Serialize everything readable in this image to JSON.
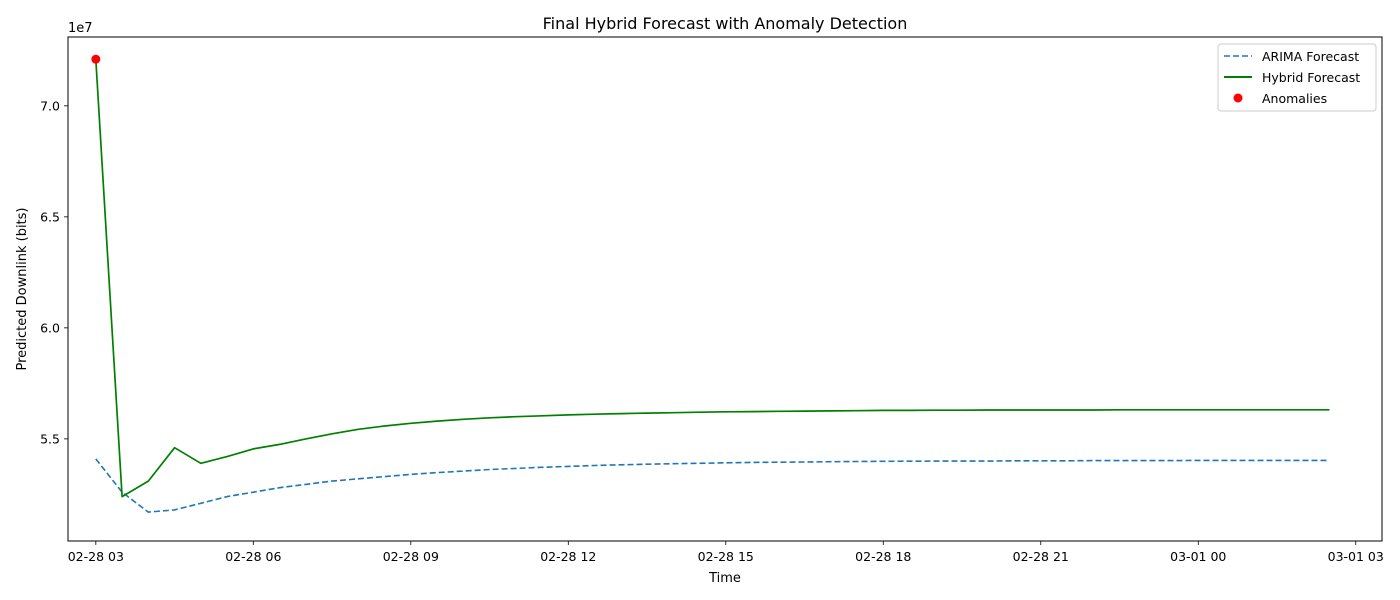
{
  "chart_data": {
    "type": "line",
    "title": "Final Hybrid Forecast with Anomaly Detection",
    "xlabel": "Time",
    "ylabel": "Predicted Downlink (bits)",
    "y_offset_text": "1e7",
    "y_multiplier": 10000000,
    "x_unit": "hours since 02-28 00:00",
    "xlim": [
      2.47,
      27.5
    ],
    "ylim": [
      5.04,
      7.31
    ],
    "x_ticks": [
      {
        "value": 3,
        "label": "02-28 03"
      },
      {
        "value": 6,
        "label": "02-28 06"
      },
      {
        "value": 9,
        "label": "02-28 09"
      },
      {
        "value": 12,
        "label": "02-28 12"
      },
      {
        "value": 15,
        "label": "02-28 15"
      },
      {
        "value": 18,
        "label": "02-28 18"
      },
      {
        "value": 21,
        "label": "02-28 21"
      },
      {
        "value": 24,
        "label": "03-01 00"
      },
      {
        "value": 27,
        "label": "03-01 03"
      }
    ],
    "y_ticks": [
      {
        "value": 5.5,
        "label": "5.5"
      },
      {
        "value": 6.0,
        "label": "6.0"
      },
      {
        "value": 6.5,
        "label": "6.5"
      },
      {
        "value": 7.0,
        "label": "7.0"
      }
    ],
    "x": [
      3.0,
      3.5,
      4.0,
      4.5,
      5.0,
      5.5,
      6.0,
      6.5,
      7.0,
      7.5,
      8.0,
      8.5,
      9.0,
      9.5,
      10.0,
      10.5,
      11.0,
      11.5,
      12.0,
      12.5,
      13.0,
      13.5,
      14.0,
      14.5,
      15.0,
      15.5,
      16.0,
      16.5,
      17.0,
      17.5,
      18.0,
      18.5,
      19.0,
      19.5,
      20.0,
      20.5,
      21.0,
      21.5,
      22.0,
      22.5,
      23.0,
      23.5,
      24.0,
      24.5,
      25.0,
      25.5,
      26.0,
      26.5
    ],
    "series": [
      {
        "name": "ARIMA Forecast",
        "style": "dashed",
        "color": "#1f77b4",
        "values": [
          5.41,
          5.26,
          5.17,
          5.18,
          5.21,
          5.24,
          5.26,
          5.28,
          5.295,
          5.31,
          5.32,
          5.33,
          5.34,
          5.348,
          5.355,
          5.362,
          5.367,
          5.372,
          5.376,
          5.38,
          5.383,
          5.386,
          5.388,
          5.39,
          5.392,
          5.394,
          5.395,
          5.396,
          5.397,
          5.398,
          5.399,
          5.3995,
          5.4,
          5.4,
          5.4,
          5.401,
          5.401,
          5.401,
          5.402,
          5.402,
          5.402,
          5.402,
          5.403,
          5.403,
          5.403,
          5.403,
          5.403,
          5.403
        ]
      },
      {
        "name": "Hybrid Forecast",
        "style": "solid",
        "color": "#008000",
        "values": [
          7.21,
          5.24,
          5.31,
          5.46,
          5.39,
          5.42,
          5.455,
          5.475,
          5.5,
          5.523,
          5.543,
          5.558,
          5.57,
          5.58,
          5.588,
          5.595,
          5.6,
          5.604,
          5.608,
          5.611,
          5.614,
          5.616,
          5.618,
          5.62,
          5.622,
          5.623,
          5.624,
          5.625,
          5.626,
          5.627,
          5.628,
          5.628,
          5.629,
          5.629,
          5.63,
          5.63,
          5.63,
          5.63,
          5.63,
          5.631,
          5.631,
          5.631,
          5.631,
          5.631,
          5.631,
          5.631,
          5.631,
          5.631
        ]
      }
    ],
    "anomalies": {
      "name": "Anomalies",
      "color": "#ff0000",
      "points": [
        {
          "x": 3.0,
          "y": 7.21
        }
      ]
    },
    "legend_placement": "top-right",
    "grid": false
  }
}
